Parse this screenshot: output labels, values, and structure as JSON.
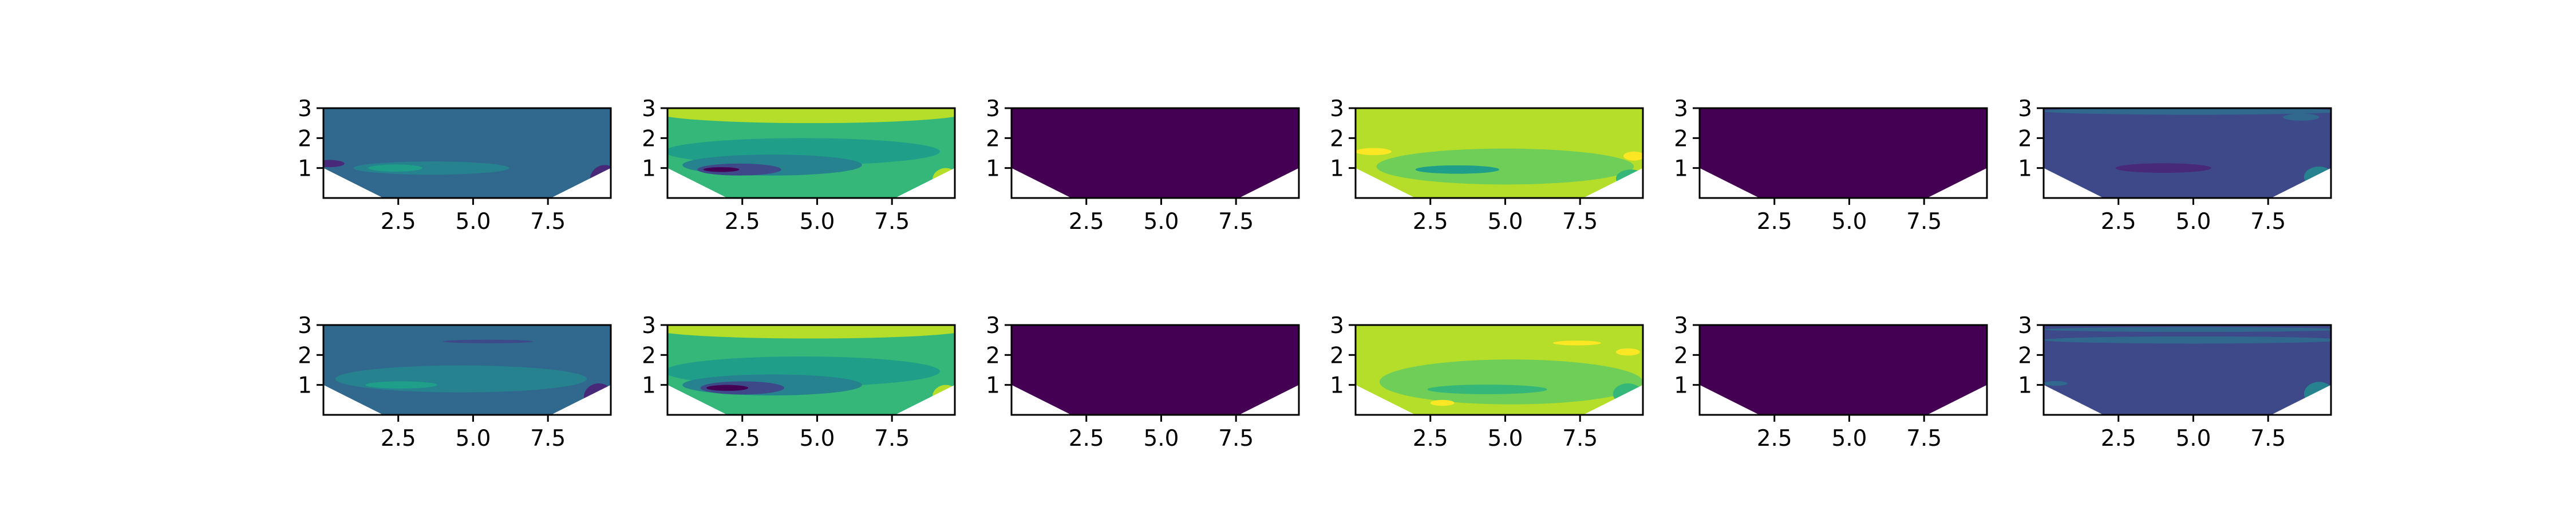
{
  "colors": {
    "viridis": [
      "#440154",
      "#482878",
      "#3e4989",
      "#31688e",
      "#26828e",
      "#1f9e89",
      "#35b779",
      "#6ece58",
      "#b5de2b",
      "#fde725"
    ],
    "background": "#ffffff",
    "axes_edge": "#000000",
    "void_region": "#ffffff"
  },
  "chart_data": [
    {
      "type": "heatmap",
      "panel": "row1-col1",
      "xlim": [
        0,
        9.6
      ],
      "ylim": [
        0,
        3
      ],
      "xticks": [
        "2.5",
        "5.0",
        "7.5"
      ],
      "yticks": [
        "1",
        "2",
        "3"
      ],
      "domain_bottom": [
        [
          0,
          1
        ],
        [
          2,
          0
        ],
        [
          7.6,
          0
        ],
        [
          9.6,
          1
        ]
      ],
      "base_level": 3,
      "features": [
        {
          "level": 4,
          "x": 3.6,
          "y": 1.0,
          "rx": 2.6,
          "ry": 0.22
        },
        {
          "level": 5,
          "x": 2.4,
          "y": 1.0,
          "rx": 0.9,
          "ry": 0.12
        },
        {
          "level": 1,
          "x": 9.4,
          "y": 0.6,
          "rx": 0.5,
          "ry": 0.5
        },
        {
          "level": 1,
          "x": 0.2,
          "y": 1.15,
          "rx": 0.5,
          "ry": 0.12
        }
      ]
    },
    {
      "type": "heatmap",
      "panel": "row1-col2",
      "xlim": [
        0,
        9.6
      ],
      "ylim": [
        0,
        3
      ],
      "xticks": [
        "2.5",
        "5.0",
        "7.5"
      ],
      "yticks": [
        "1",
        "2",
        "3"
      ],
      "domain_bottom": [
        [
          0,
          1
        ],
        [
          2,
          0
        ],
        [
          7.6,
          0
        ],
        [
          9.6,
          1
        ]
      ],
      "base_level": 6,
      "features": [
        {
          "level": 8,
          "x": 4.8,
          "y": 2.85,
          "rx": 5.2,
          "ry": 0.35
        },
        {
          "level": 5,
          "x": 4.5,
          "y": 1.55,
          "rx": 4.6,
          "ry": 0.45
        },
        {
          "level": 4,
          "x": 3.5,
          "y": 1.1,
          "rx": 3.0,
          "ry": 0.35
        },
        {
          "level": 2,
          "x": 2.4,
          "y": 0.95,
          "rx": 1.4,
          "ry": 0.2
        },
        {
          "level": 0,
          "x": 1.8,
          "y": 0.95,
          "rx": 0.6,
          "ry": 0.08
        },
        {
          "level": 8,
          "x": 9.3,
          "y": 0.6,
          "rx": 0.45,
          "ry": 0.4
        }
      ]
    },
    {
      "type": "heatmap",
      "panel": "row1-col3",
      "xlim": [
        0,
        9.6
      ],
      "ylim": [
        0,
        3
      ],
      "xticks": [
        "2.5",
        "5.0",
        "7.5"
      ],
      "yticks": [
        "1",
        "2",
        "3"
      ],
      "domain_bottom": [
        [
          0,
          1
        ],
        [
          2,
          0
        ],
        [
          7.6,
          0
        ],
        [
          9.6,
          1
        ]
      ],
      "base_level": 0,
      "features": []
    },
    {
      "type": "heatmap",
      "panel": "row1-col4",
      "xlim": [
        0,
        9.6
      ],
      "ylim": [
        0,
        3
      ],
      "xticks": [
        "2.5",
        "5.0",
        "7.5"
      ],
      "yticks": [
        "1",
        "2",
        "3"
      ],
      "domain_bottom": [
        [
          0,
          1
        ],
        [
          2,
          0
        ],
        [
          7.6,
          0
        ],
        [
          9.6,
          1
        ]
      ],
      "base_level": 8,
      "features": [
        {
          "level": 7,
          "x": 5.0,
          "y": 1.05,
          "rx": 4.3,
          "ry": 0.6
        },
        {
          "level": 5,
          "x": 3.4,
          "y": 0.95,
          "rx": 1.4,
          "ry": 0.14
        },
        {
          "level": 9,
          "x": 0.6,
          "y": 1.55,
          "rx": 0.6,
          "ry": 0.12
        },
        {
          "level": 9,
          "x": 9.3,
          "y": 1.4,
          "rx": 0.35,
          "ry": 0.15
        },
        {
          "level": 6,
          "x": 9.2,
          "y": 0.65,
          "rx": 0.5,
          "ry": 0.3
        }
      ]
    },
    {
      "type": "heatmap",
      "panel": "row1-col5",
      "xlim": [
        0,
        9.6
      ],
      "ylim": [
        0,
        3
      ],
      "xticks": [
        "2.5",
        "5.0",
        "7.5"
      ],
      "yticks": [
        "1",
        "2",
        "3"
      ],
      "domain_bottom": [
        [
          0,
          1
        ],
        [
          2,
          0
        ],
        [
          7.6,
          0
        ],
        [
          9.6,
          1
        ]
      ],
      "base_level": 0,
      "features": []
    },
    {
      "type": "heatmap",
      "panel": "row1-col6",
      "xlim": [
        0,
        9.6
      ],
      "ylim": [
        0,
        3
      ],
      "xticks": [
        "2.5",
        "5.0",
        "7.5"
      ],
      "yticks": [
        "1",
        "2",
        "3"
      ],
      "domain_bottom": [
        [
          0,
          1
        ],
        [
          2,
          0
        ],
        [
          7.6,
          0
        ],
        [
          9.6,
          1
        ]
      ],
      "base_level": 2,
      "features": [
        {
          "level": 3,
          "x": 5.0,
          "y": 2.9,
          "rx": 5.0,
          "ry": 0.12
        },
        {
          "level": 1,
          "x": 4.0,
          "y": 1.0,
          "rx": 1.6,
          "ry": 0.16
        },
        {
          "level": 4,
          "x": 9.2,
          "y": 0.7,
          "rx": 0.5,
          "ry": 0.35
        },
        {
          "level": 3,
          "x": 8.6,
          "y": 2.7,
          "rx": 0.6,
          "ry": 0.12
        }
      ]
    },
    {
      "type": "heatmap",
      "panel": "row2-col1",
      "xlim": [
        0,
        9.6
      ],
      "ylim": [
        0,
        3
      ],
      "xticks": [
        "2.5",
        "5.0",
        "7.5"
      ],
      "yticks": [
        "1",
        "2",
        "3"
      ],
      "domain_bottom": [
        [
          0,
          1
        ],
        [
          2,
          0
        ],
        [
          7.6,
          0
        ],
        [
          9.6,
          1
        ]
      ],
      "base_level": 3,
      "features": [
        {
          "level": 4,
          "x": 4.6,
          "y": 1.2,
          "rx": 4.2,
          "ry": 0.45
        },
        {
          "level": 5,
          "x": 2.6,
          "y": 1.0,
          "rx": 1.2,
          "ry": 0.12
        },
        {
          "level": 2,
          "x": 5.5,
          "y": 2.45,
          "rx": 1.5,
          "ry": 0.06
        },
        {
          "level": 1,
          "x": 9.2,
          "y": 0.6,
          "rx": 0.5,
          "ry": 0.45
        }
      ]
    },
    {
      "type": "heatmap",
      "panel": "row2-col2",
      "xlim": [
        0,
        9.6
      ],
      "ylim": [
        0,
        3
      ],
      "xticks": [
        "2.5",
        "5.0",
        "7.5"
      ],
      "yticks": [
        "1",
        "2",
        "3"
      ],
      "domain_bottom": [
        [
          0,
          1
        ],
        [
          2,
          0
        ],
        [
          7.6,
          0
        ],
        [
          9.6,
          1
        ]
      ],
      "base_level": 6,
      "features": [
        {
          "level": 8,
          "x": 4.8,
          "y": 2.85,
          "rx": 5.2,
          "ry": 0.3
        },
        {
          "level": 5,
          "x": 4.5,
          "y": 1.45,
          "rx": 4.6,
          "ry": 0.5
        },
        {
          "level": 4,
          "x": 3.5,
          "y": 1.0,
          "rx": 3.0,
          "ry": 0.35
        },
        {
          "level": 2,
          "x": 2.5,
          "y": 0.9,
          "rx": 1.4,
          "ry": 0.22
        },
        {
          "level": 0,
          "x": 2.0,
          "y": 0.9,
          "rx": 0.7,
          "ry": 0.1
        },
        {
          "level": 8,
          "x": 9.3,
          "y": 0.6,
          "rx": 0.45,
          "ry": 0.4
        }
      ]
    },
    {
      "type": "heatmap",
      "panel": "row2-col3",
      "xlim": [
        0,
        9.6
      ],
      "ylim": [
        0,
        3
      ],
      "xticks": [
        "2.5",
        "5.0",
        "7.5"
      ],
      "yticks": [
        "1",
        "2",
        "3"
      ],
      "domain_bottom": [
        [
          0,
          1
        ],
        [
          2,
          0
        ],
        [
          7.6,
          0
        ],
        [
          9.6,
          1
        ]
      ],
      "base_level": 0,
      "features": []
    },
    {
      "type": "heatmap",
      "panel": "row2-col4",
      "xlim": [
        0,
        9.6
      ],
      "ylim": [
        0,
        3
      ],
      "xticks": [
        "2.5",
        "5.0",
        "7.5"
      ],
      "yticks": [
        "1",
        "2",
        "3"
      ],
      "domain_bottom": [
        [
          0,
          1
        ],
        [
          2,
          0
        ],
        [
          7.6,
          0
        ],
        [
          9.6,
          1
        ]
      ],
      "base_level": 8,
      "features": [
        {
          "level": 7,
          "x": 5.2,
          "y": 1.1,
          "rx": 4.4,
          "ry": 0.75
        },
        {
          "level": 6,
          "x": 4.4,
          "y": 0.85,
          "rx": 2.0,
          "ry": 0.16
        },
        {
          "level": 9,
          "x": 7.4,
          "y": 2.4,
          "rx": 0.8,
          "ry": 0.08
        },
        {
          "level": 9,
          "x": 9.1,
          "y": 2.1,
          "rx": 0.4,
          "ry": 0.12
        },
        {
          "level": 9,
          "x": 2.9,
          "y": 0.4,
          "rx": 0.4,
          "ry": 0.1
        },
        {
          "level": 6,
          "x": 9.1,
          "y": 0.7,
          "rx": 0.5,
          "ry": 0.35
        }
      ]
    },
    {
      "type": "heatmap",
      "panel": "row2-col5",
      "xlim": [
        0,
        9.6
      ],
      "ylim": [
        0,
        3
      ],
      "xticks": [
        "2.5",
        "5.0",
        "7.5"
      ],
      "yticks": [
        "1",
        "2",
        "3"
      ],
      "domain_bottom": [
        [
          0,
          1
        ],
        [
          2,
          0
        ],
        [
          7.6,
          0
        ],
        [
          9.6,
          1
        ]
      ],
      "base_level": 0,
      "features": []
    },
    {
      "type": "heatmap",
      "panel": "row2-col6",
      "xlim": [
        0,
        9.6
      ],
      "ylim": [
        0,
        3
      ],
      "xticks": [
        "2.5",
        "5.0",
        "7.5"
      ],
      "yticks": [
        "1",
        "2",
        "3"
      ],
      "domain_bottom": [
        [
          0,
          1
        ],
        [
          2,
          0
        ],
        [
          7.6,
          0
        ],
        [
          9.6,
          1
        ]
      ],
      "base_level": 2,
      "features": [
        {
          "level": 3,
          "x": 5.0,
          "y": 2.5,
          "rx": 5.0,
          "ry": 0.12
        },
        {
          "level": 3,
          "x": 5.0,
          "y": 2.85,
          "rx": 5.0,
          "ry": 0.08
        },
        {
          "level": 4,
          "x": 9.2,
          "y": 0.7,
          "rx": 0.5,
          "ry": 0.4
        },
        {
          "level": 3,
          "x": 0.4,
          "y": 1.05,
          "rx": 0.4,
          "ry": 0.08
        }
      ]
    }
  ]
}
